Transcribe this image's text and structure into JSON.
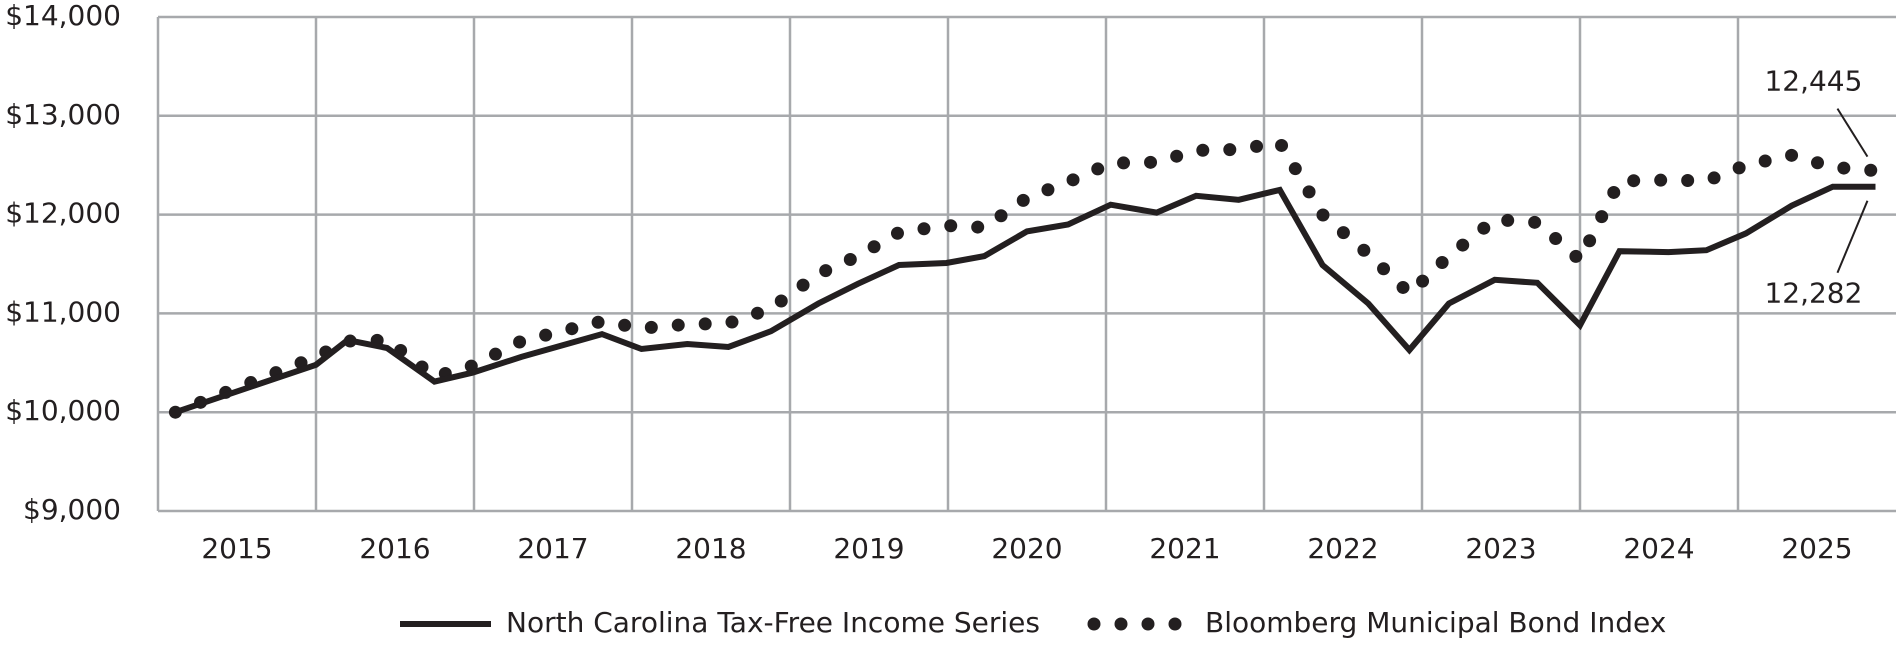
{
  "chart_data": {
    "type": "line",
    "x": [
      2015.11,
      2016.0,
      2016.2,
      2016.45,
      2016.75,
      2016.99,
      2017.3,
      2017.81,
      2018.06,
      2018.35,
      2018.61,
      2018.88,
      2019.18,
      2019.43,
      2019.69,
      2019.99,
      2020.23,
      2020.5,
      2020.76,
      2021.03,
      2021.32,
      2021.57,
      2021.84,
      2022.1,
      2022.37,
      2022.66,
      2022.92,
      2023.17,
      2023.46,
      2023.73,
      2024.0,
      2024.25,
      2024.56,
      2024.8,
      2025.05,
      2025.34,
      2025.6,
      2025.87
    ],
    "series": [
      {
        "name": "North Carolina Tax-Free Income Series",
        "color": "#231f20",
        "style": "solid",
        "values": [
          10000,
          10480,
          10730,
          10650,
          10310,
          10400,
          10560,
          10790,
          10640,
          10690,
          10660,
          10820,
          11100,
          11300,
          11490,
          11510,
          11580,
          11830,
          11900,
          12100,
          12020,
          12190,
          12150,
          12250,
          11490,
          11100,
          10630,
          11100,
          11340,
          11310,
          10880,
          11630,
          11620,
          11640,
          11810,
          12090,
          12282,
          12282
        ],
        "value_labels": [
          null,
          null,
          null,
          null,
          null,
          null,
          null,
          null,
          null,
          null,
          null,
          null,
          null,
          null,
          null,
          null,
          null,
          null,
          null,
          null,
          null,
          null,
          null,
          null,
          null,
          null,
          null,
          null,
          null,
          null,
          null,
          null,
          null,
          null,
          null,
          null,
          null,
          "12,282"
        ]
      },
      {
        "name": "Bloomberg Municipal Bond Index",
        "color": "#231f20",
        "style": "dotted",
        "values": [
          10000,
          10560,
          10720,
          10730,
          10360,
          10470,
          10720,
          10920,
          10850,
          10890,
          10900,
          11050,
          11400,
          11580,
          11820,
          11890,
          11870,
          12170,
          12330,
          12520,
          12530,
          12650,
          12660,
          12730,
          12000,
          11600,
          11200,
          11580,
          11950,
          11920,
          11540,
          12340,
          12350,
          12340,
          12500,
          12600,
          12480,
          12445
        ],
        "value_labels": [
          null,
          null,
          null,
          null,
          null,
          null,
          null,
          null,
          null,
          null,
          null,
          null,
          null,
          null,
          null,
          null,
          null,
          null,
          null,
          null,
          null,
          null,
          null,
          null,
          null,
          null,
          null,
          null,
          null,
          null,
          null,
          null,
          null,
          null,
          null,
          null,
          null,
          "12,445"
        ]
      }
    ],
    "xlim": [
      2015,
      2026
    ],
    "xticks": [
      {
        "value": 2015.5,
        "label": "2015"
      },
      {
        "value": 2016.5,
        "label": "2016"
      },
      {
        "value": 2017.5,
        "label": "2017"
      },
      {
        "value": 2018.5,
        "label": "2018"
      },
      {
        "value": 2019.5,
        "label": "2019"
      },
      {
        "value": 2020.5,
        "label": "2020"
      },
      {
        "value": 2021.5,
        "label": "2021"
      },
      {
        "value": 2022.5,
        "label": "2022"
      },
      {
        "value": 2023.5,
        "label": "2023"
      },
      {
        "value": 2024.5,
        "label": "2024"
      },
      {
        "value": 2025.5,
        "label": "2025"
      }
    ],
    "xgrid": [
      2015,
      2016,
      2017,
      2018,
      2019,
      2020,
      2021,
      2022,
      2023,
      2024,
      2025
    ],
    "ylim": [
      9000,
      14000
    ],
    "yticks": [
      {
        "value": 9000,
        "label": "$9,000"
      },
      {
        "value": 10000,
        "label": "$10,000"
      },
      {
        "value": 11000,
        "label": "$11,000"
      },
      {
        "value": 12000,
        "label": "$12,000"
      },
      {
        "value": 13000,
        "label": "$13,000"
      },
      {
        "value": 14000,
        "label": "$14,000"
      }
    ],
    "grid": true,
    "legend": "bottom"
  }
}
